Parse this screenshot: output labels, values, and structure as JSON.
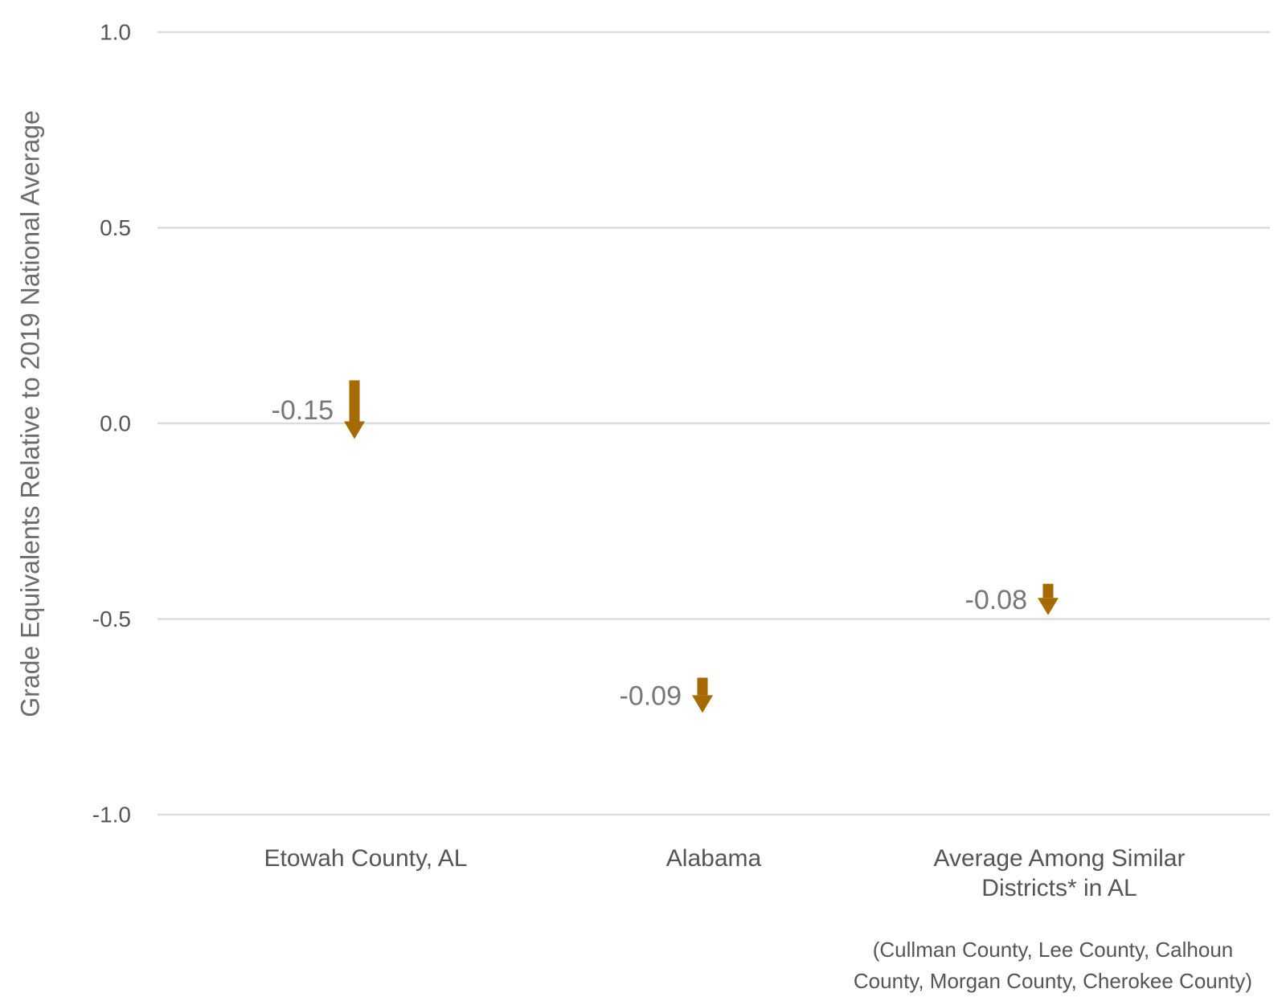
{
  "chart_data": {
    "type": "arrow",
    "title": "",
    "xlabel": "",
    "ylabel": "Grade Equivalents Relative to 2019 National Average",
    "ylim": [
      -1.0,
      1.0
    ],
    "yticks": [
      "1.0",
      "0.5",
      "0.0",
      "-0.5",
      "-1.0"
    ],
    "grid": true,
    "arrow_color": "#a56a00",
    "categories": [
      {
        "label_lines": [
          "Etowah County, AL"
        ],
        "start": 0.11,
        "end": -0.04,
        "change": -0.15,
        "change_label": "-0.15"
      },
      {
        "label_lines": [
          "Alabama"
        ],
        "start": -0.65,
        "end": -0.74,
        "change": -0.09,
        "change_label": "-0.09"
      },
      {
        "label_lines": [
          "Average Among Similar",
          "Districts* in AL"
        ],
        "start": -0.41,
        "end": -0.49,
        "change": -0.08,
        "change_label": "-0.08"
      }
    ],
    "footnote": [
      "(Cullman County, Lee County, Calhoun",
      "County, Morgan County, Cherokee County)"
    ]
  }
}
